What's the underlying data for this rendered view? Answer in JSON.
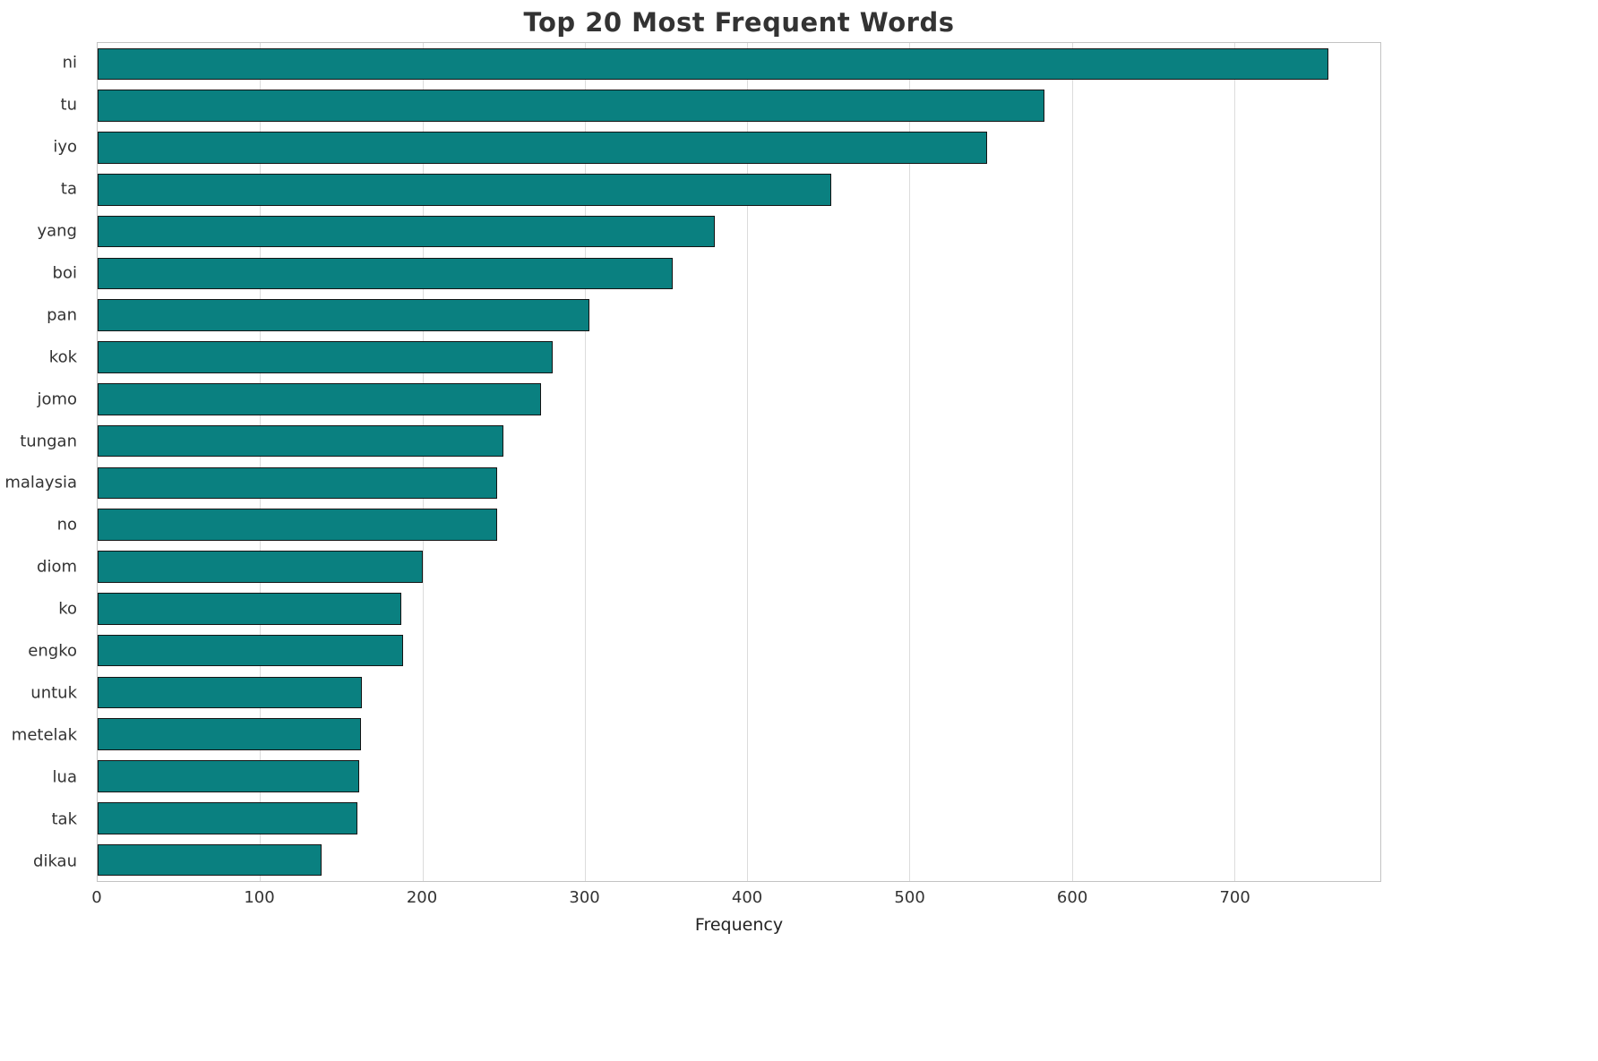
{
  "chart_data": {
    "type": "bar",
    "orientation": "horizontal",
    "title": "Top 20 Most Frequent Words",
    "xlabel": "Frequency",
    "ylabel": "",
    "categories": [
      "ni",
      "tu",
      "iyo",
      "ta",
      "yang",
      "boi",
      "pan",
      "kok",
      "jomo",
      "tungan",
      "malaysia",
      "no",
      "diom",
      "ko",
      "engko",
      "untuk",
      "metelak",
      "lua",
      "tak",
      "dikau"
    ],
    "values": [
      758,
      583,
      548,
      452,
      380,
      354,
      303,
      280,
      273,
      250,
      246,
      246,
      200,
      187,
      188,
      163,
      162,
      161,
      160,
      138
    ],
    "xlim": [
      0,
      790
    ],
    "xticks": [
      0,
      100,
      200,
      300,
      400,
      500,
      600,
      700
    ],
    "grid": true,
    "legend": false,
    "bar_color": "#0a8080",
    "bar_edge_color": "#141414",
    "grid_color": "#dcdcdc",
    "title_color": "#333333",
    "background_color": "#ffffff"
  }
}
